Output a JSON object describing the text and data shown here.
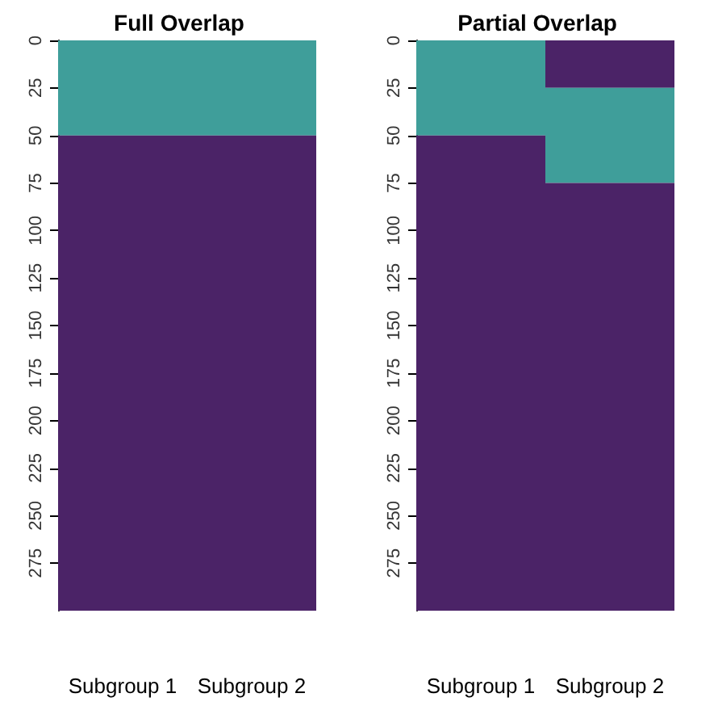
{
  "chart_data": [
    {
      "type": "bar",
      "stacked": true,
      "title": "Full Overlap",
      "categories": [
        "Subgroup 1",
        "Subgroup 2"
      ],
      "ylim": [
        300,
        0
      ],
      "yticks": [
        0,
        25,
        50,
        75,
        100,
        125,
        150,
        175,
        200,
        225,
        250,
        275
      ],
      "series": [
        {
          "color": "#3f9e9a",
          "values": [
            50,
            50
          ]
        },
        {
          "color": "#4b2367",
          "values": [
            250,
            250
          ]
        }
      ]
    },
    {
      "type": "bar",
      "stacked": true,
      "title": "Partial Overlap",
      "categories": [
        "Subgroup 1",
        "Subgroup 2"
      ],
      "ylim": [
        300,
        0
      ],
      "yticks": [
        0,
        25,
        50,
        75,
        100,
        125,
        150,
        175,
        200,
        225,
        250,
        275
      ],
      "series": [
        {
          "color": "#4b2367",
          "values": [
            null,
            25
          ]
        },
        {
          "color": "#3f9e9a",
          "values": [
            50,
            50
          ]
        },
        {
          "color": "#4b2367",
          "values": [
            250,
            225
          ]
        }
      ]
    }
  ]
}
